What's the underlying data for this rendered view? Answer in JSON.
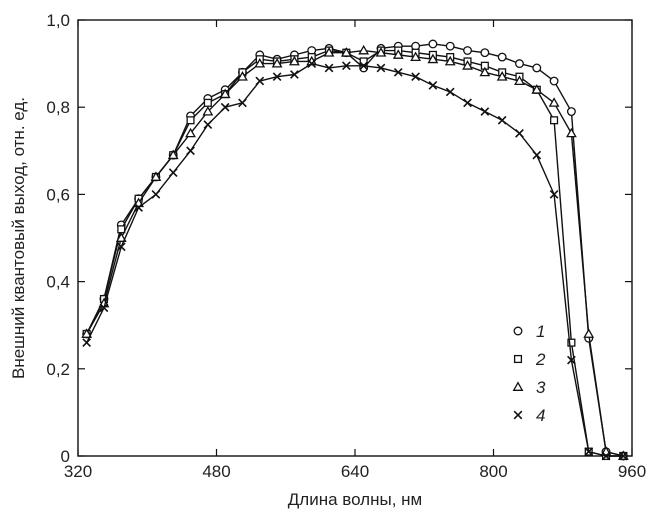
{
  "chart_data": {
    "type": "line",
    "xlabel": "Длина волны, нм",
    "ylabel": "Внешний квантовый выход, отн. ед.",
    "xlim": [
      320,
      960
    ],
    "ylim": [
      0,
      1.0
    ],
    "x_ticks": [
      {
        "value": 320,
        "label": "320"
      },
      {
        "value": 480,
        "label": "480"
      },
      {
        "value": 640,
        "label": "640"
      },
      {
        "value": 800,
        "label": "800"
      },
      {
        "value": 960,
        "label": "960"
      }
    ],
    "y_ticks": [
      {
        "value": 0,
        "label": "0"
      },
      {
        "value": 0.2,
        "label": "0,2"
      },
      {
        "value": 0.4,
        "label": "0,4"
      },
      {
        "value": 0.6,
        "label": "0,6"
      },
      {
        "value": 0.8,
        "label": "0,8"
      },
      {
        "value": 1.0,
        "label": "1,0"
      }
    ],
    "grid": false,
    "legend_position": "bottom-right",
    "x": [
      330,
      350,
      370,
      390,
      410,
      430,
      450,
      470,
      490,
      510,
      530,
      550,
      570,
      590,
      610,
      630,
      650,
      670,
      690,
      710,
      730,
      750,
      770,
      790,
      810,
      830,
      850,
      870,
      890,
      910,
      930,
      950
    ],
    "series": [
      {
        "name": "1",
        "marker": "circle",
        "values": [
          0.28,
          0.36,
          0.53,
          0.59,
          0.64,
          0.69,
          0.78,
          0.82,
          0.84,
          0.88,
          0.92,
          0.91,
          0.92,
          0.93,
          0.935,
          0.925,
          0.89,
          0.935,
          0.94,
          0.94,
          0.945,
          0.94,
          0.93,
          0.925,
          0.915,
          0.9,
          0.89,
          0.86,
          0.79,
          0.27,
          0.01,
          0.0
        ]
      },
      {
        "name": "2",
        "marker": "square",
        "values": [
          0.28,
          0.36,
          0.52,
          0.59,
          0.64,
          0.69,
          0.77,
          0.81,
          0.83,
          0.88,
          0.91,
          0.905,
          0.91,
          0.915,
          0.93,
          0.925,
          0.905,
          0.93,
          0.93,
          0.925,
          0.92,
          0.915,
          0.905,
          0.895,
          0.88,
          0.87,
          0.84,
          0.77,
          0.26,
          0.01,
          0.0,
          0.0
        ]
      },
      {
        "name": "3",
        "marker": "triangle",
        "values": [
          0.28,
          0.35,
          0.5,
          0.58,
          0.64,
          0.69,
          0.74,
          0.79,
          0.83,
          0.87,
          0.9,
          0.9,
          0.905,
          0.905,
          0.925,
          0.925,
          0.93,
          0.925,
          0.92,
          0.915,
          0.91,
          0.905,
          0.895,
          0.88,
          0.87,
          0.86,
          0.84,
          0.81,
          0.74,
          0.28,
          0.01,
          0.0
        ]
      },
      {
        "name": "4",
        "marker": "cross",
        "values": [
          0.26,
          0.34,
          0.48,
          0.57,
          0.6,
          0.65,
          0.7,
          0.76,
          0.8,
          0.81,
          0.86,
          0.87,
          0.875,
          0.9,
          0.89,
          0.895,
          0.895,
          0.89,
          0.88,
          0.87,
          0.85,
          0.835,
          0.81,
          0.79,
          0.77,
          0.74,
          0.69,
          0.6,
          0.22,
          0.01,
          0.0,
          0.0
        ]
      }
    ]
  }
}
